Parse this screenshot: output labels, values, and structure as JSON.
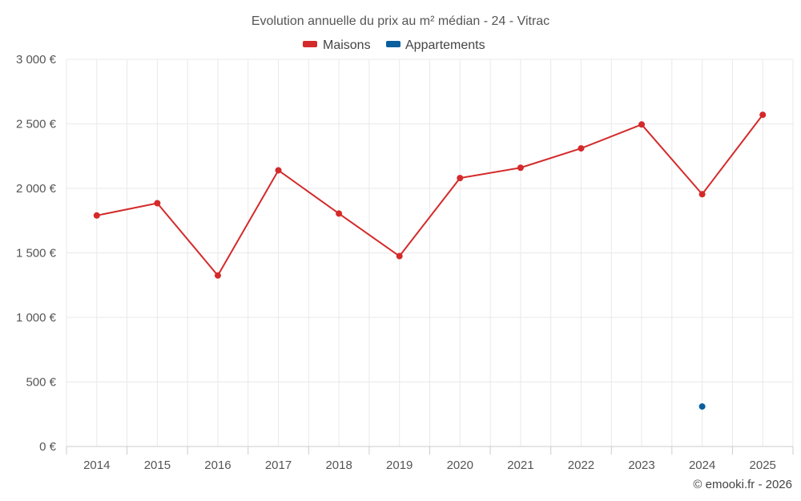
{
  "chart_data": {
    "type": "line",
    "title": "Evolution annuelle du prix au m² médian - 24 - Vitrac",
    "categories": [
      "2014",
      "2015",
      "2016",
      "2017",
      "2018",
      "2019",
      "2020",
      "2021",
      "2022",
      "2023",
      "2024",
      "2025"
    ],
    "series": [
      {
        "name": "Maisons",
        "color": "#d42a2a",
        "values": [
          1790,
          1885,
          1325,
          2140,
          1805,
          1475,
          2080,
          2160,
          2310,
          2495,
          1955,
          2570
        ]
      },
      {
        "name": "Appartements",
        "color": "#0a5e9e",
        "values": [
          null,
          null,
          null,
          null,
          null,
          null,
          null,
          null,
          null,
          null,
          310,
          null
        ]
      }
    ],
    "ylim": [
      0,
      3000
    ],
    "yticks": [
      0,
      500,
      1000,
      1500,
      2000,
      2500,
      3000
    ],
    "ytick_labels": [
      "0 €",
      "500 €",
      "1 000 €",
      "1 500 €",
      "2 000 €",
      "2 500 €",
      "3 000 €"
    ],
    "xlabel": "",
    "ylabel": "",
    "grid": true,
    "legend_position": "top-center"
  },
  "credit": "© emooki.fr - 2026"
}
